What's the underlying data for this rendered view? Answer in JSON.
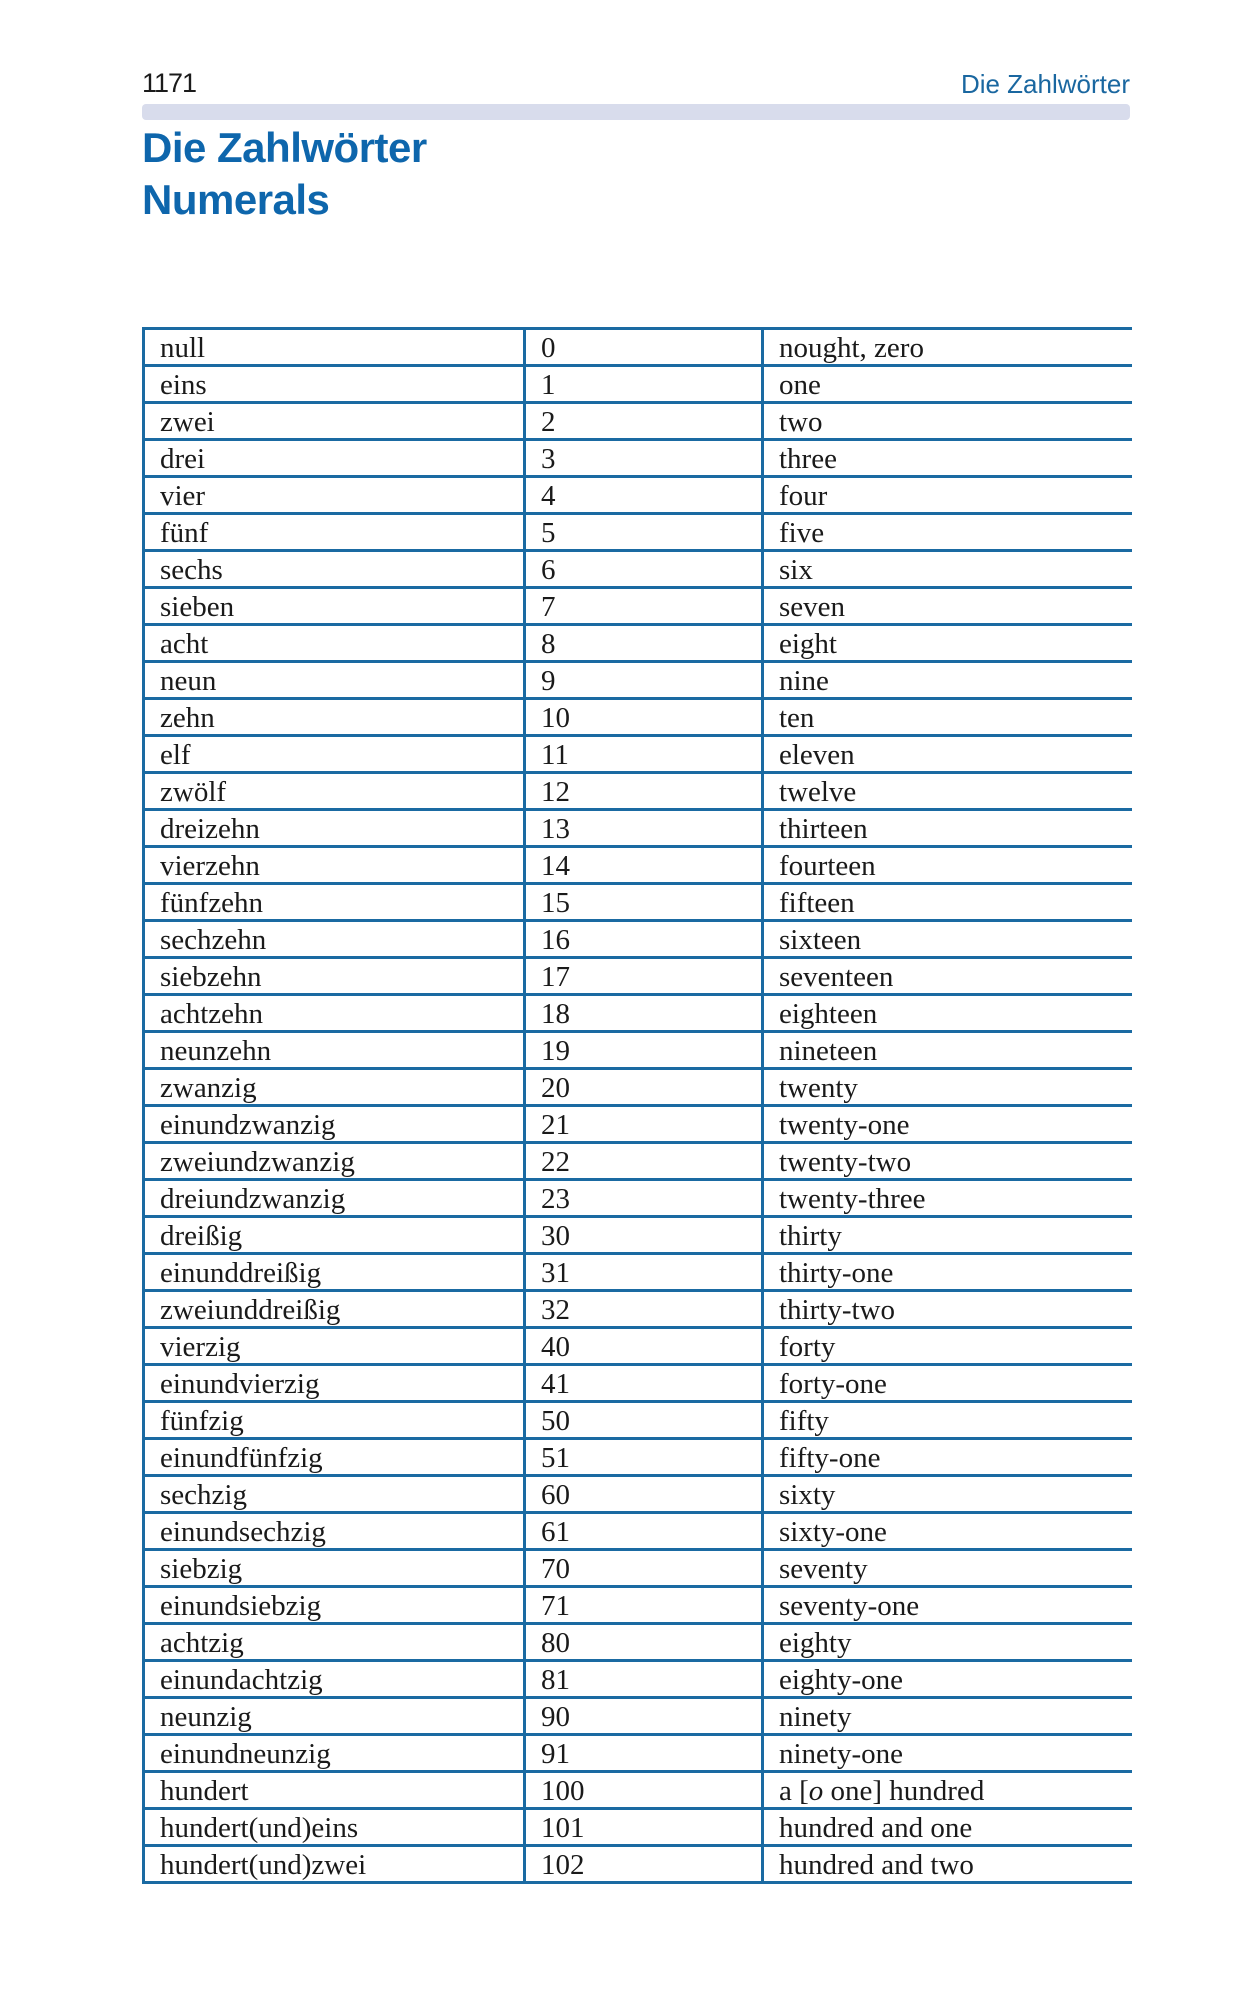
{
  "page": {
    "number": "1171",
    "running_header": "Die Zahlwörter"
  },
  "heading": {
    "title_de": "Die Zahlwörter",
    "title_en": "Numerals"
  },
  "colors": {
    "accent_blue": "#0e66ac",
    "rule_blue": "#1a6aa2",
    "running_header_blue": "#1a67a0",
    "header_bar": "#d8dcec",
    "text": "#1a1a1a"
  },
  "table": {
    "columns": [
      "german",
      "numeral",
      "english"
    ],
    "rows": [
      {
        "de": "null",
        "num": "0",
        "en": "nought, zero"
      },
      {
        "de": "eins",
        "num": "1",
        "en": "one"
      },
      {
        "de": "zwei",
        "num": "2",
        "en": "two"
      },
      {
        "de": "drei",
        "num": "3",
        "en": "three"
      },
      {
        "de": "vier",
        "num": "4",
        "en": "four"
      },
      {
        "de": "fünf",
        "num": "5",
        "en": "five"
      },
      {
        "de": "sechs",
        "num": "6",
        "en": "six"
      },
      {
        "de": "sieben",
        "num": "7",
        "en": "seven"
      },
      {
        "de": "acht",
        "num": "8",
        "en": "eight"
      },
      {
        "de": "neun",
        "num": "9",
        "en": "nine"
      },
      {
        "de": "zehn",
        "num": "10",
        "en": "ten"
      },
      {
        "de": "elf",
        "num": "11",
        "en": "eleven"
      },
      {
        "de": "zwölf",
        "num": "12",
        "en": "twelve"
      },
      {
        "de": "dreizehn",
        "num": "13",
        "en": "thirteen"
      },
      {
        "de": "vierzehn",
        "num": "14",
        "en": "fourteen"
      },
      {
        "de": "fünfzehn",
        "num": "15",
        "en": "fifteen"
      },
      {
        "de": "sechzehn",
        "num": "16",
        "en": "sixteen"
      },
      {
        "de": "siebzehn",
        "num": "17",
        "en": "seventeen"
      },
      {
        "de": "achtzehn",
        "num": "18",
        "en": "eighteen"
      },
      {
        "de": "neunzehn",
        "num": "19",
        "en": "nineteen"
      },
      {
        "de": "zwanzig",
        "num": "20",
        "en": "twenty"
      },
      {
        "de": "einundzwanzig",
        "num": "21",
        "en": "twenty-one"
      },
      {
        "de": "zweiundzwanzig",
        "num": "22",
        "en": "twenty-two"
      },
      {
        "de": "dreiundzwanzig",
        "num": "23",
        "en": "twenty-three"
      },
      {
        "de": "dreißig",
        "num": "30",
        "en": "thirty"
      },
      {
        "de": "einunddreißig",
        "num": "31",
        "en": "thirty-one"
      },
      {
        "de": "zweiunddreißig",
        "num": "32",
        "en": "thirty-two"
      },
      {
        "de": "vierzig",
        "num": "40",
        "en": "forty"
      },
      {
        "de": "einundvierzig",
        "num": "41",
        "en": "forty-one"
      },
      {
        "de": "fünfzig",
        "num": "50",
        "en": "fifty"
      },
      {
        "de": "einundfünfzig",
        "num": "51",
        "en": "fifty-one"
      },
      {
        "de": "sechzig",
        "num": "60",
        "en": "sixty"
      },
      {
        "de": "einundsechzig",
        "num": "61",
        "en": "sixty-one"
      },
      {
        "de": "siebzig",
        "num": "70",
        "en": "seventy"
      },
      {
        "de": "einundsiebzig",
        "num": "71",
        "en": "seventy-one"
      },
      {
        "de": "achtzig",
        "num": "80",
        "en": "eighty"
      },
      {
        "de": "einundachtzig",
        "num": "81",
        "en": "eighty-one"
      },
      {
        "de": "neunzig",
        "num": "90",
        "en": "ninety"
      },
      {
        "de": "einundneunzig",
        "num": "91",
        "en": "ninety-one"
      },
      {
        "de": "hundert",
        "num": "100",
        "en": [
          {
            "t": "a ["
          },
          {
            "t": "o",
            "italic": true
          },
          {
            "t": " one] hundred"
          }
        ]
      },
      {
        "de": "hundert(und)eins",
        "num": "101",
        "en": "hundred and one"
      },
      {
        "de": "hundert(und)zwei",
        "num": "102",
        "en": "hundred and two"
      }
    ]
  }
}
